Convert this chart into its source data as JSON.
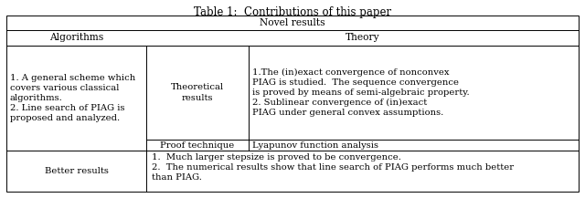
{
  "title": "Table 1:  Contributions of this paper",
  "title_fontsize": 8.5,
  "font_family": "serif",
  "cell_fontsize": 7.2,
  "fig_width": 6.4,
  "fig_height": 2.17,
  "dpi": 100,
  "background": "#ffffff",
  "header1": "Novel results",
  "col1_header": "Algorithms",
  "col2_header": "Theory",
  "row1_col1": "1. A general scheme which\ncovers various classical\nalgorithms.\n2. Line search of PIAG is\nproposed and analyzed.",
  "row1_col2a": "Theoretical\nresults",
  "row1_col2b": "1.The (in)exact convergence of nonconvex\nPIAG is studied.  The sequence convergence\nis proved by means of semi-algebraic property.\n2. Sublinear convergence of (in)exact\nPIAG under general convex assumptions.",
  "row2_col2a": "Proof technique",
  "row2_col2b": "Lyapunov function analysis",
  "row3_col1": "Better results",
  "row3_col2": "1.  Much larger stepsize is proved to be convergence.\n2.  The numerical results show that line search of PIAG performs much better\nthan PIAG.",
  "lw": 0.7
}
